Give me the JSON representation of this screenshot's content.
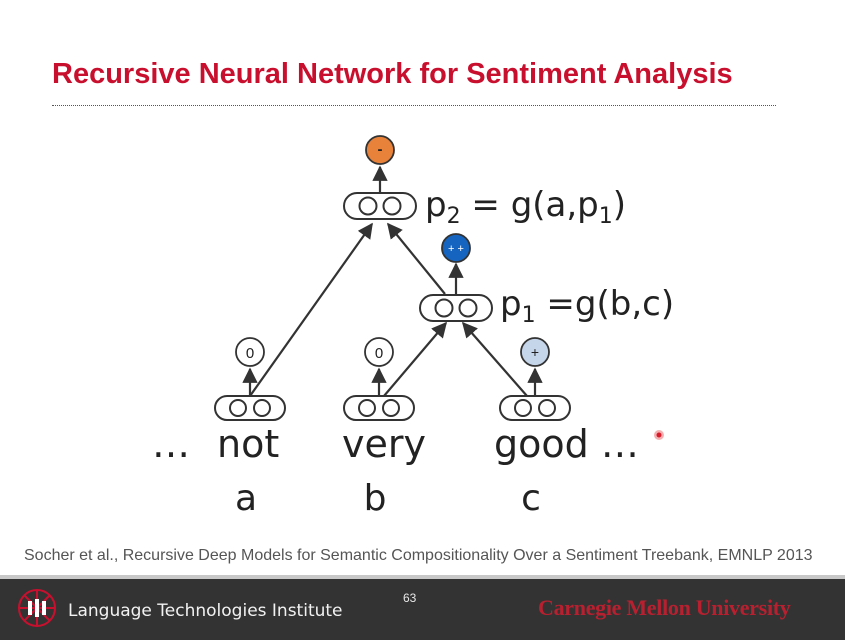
{
  "slide": {
    "title": "Recursive Neural Network for Sentiment Analysis",
    "citation": "Socher et al., Recursive Deep Models for Semantic Compositionality Over a Sentiment Treebank, EMNLP 2013",
    "page_number": "63"
  },
  "diagram": {
    "words": {
      "ellipsis_left": "…",
      "not": "not",
      "very": "very",
      "good": "good …"
    },
    "variables": {
      "a": "a",
      "b": "b",
      "c": "c"
    },
    "sentiments": {
      "not": "0",
      "very": "0",
      "good": "+",
      "p1": "+ +",
      "p2": "-"
    },
    "equations": {
      "p2": {
        "lhs": "p",
        "lhs_sub": "2",
        "rhs": " = g(a,p",
        "rhs_sub": "1",
        "close": ")"
      },
      "p1": {
        "lhs": "p",
        "lhs_sub": "1",
        "rhs": " =g(b,c)"
      }
    },
    "colors": {
      "negative": "#e8823a",
      "very_positive": "#1565c0",
      "positive": "#c5d5ea",
      "neutral": "#ffffff"
    }
  },
  "footer": {
    "institute": "Language Technologies Institute",
    "university": "Carnegie Mellon University"
  }
}
